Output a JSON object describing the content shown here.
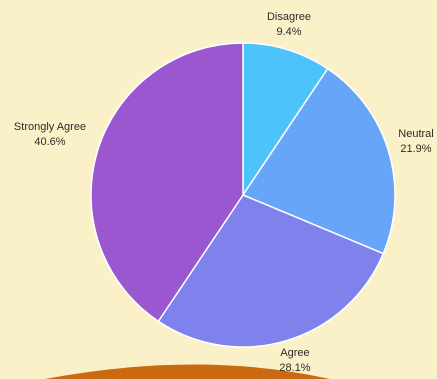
{
  "chart_data": {
    "type": "pie",
    "title": "",
    "slices": [
      {
        "label": "Disagree",
        "value": 9.4,
        "value_label": "9.4%",
        "color": "#4cc3fb"
      },
      {
        "label": "Neutral",
        "value": 21.9,
        "value_label": "21.9%",
        "color": "#66a5f8"
      },
      {
        "label": "Agree",
        "value": 28.1,
        "value_label": "28.1%",
        "color": "#7f82ec"
      },
      {
        "label": "Strongly Agree",
        "value": 40.6,
        "value_label": "40.6%",
        "color": "#9a57cf"
      }
    ],
    "start_angle_deg": 0,
    "direction": "clockwise",
    "labels_outside": true
  },
  "background_color": "#fbf1c9",
  "accent_color": "#c96a12"
}
